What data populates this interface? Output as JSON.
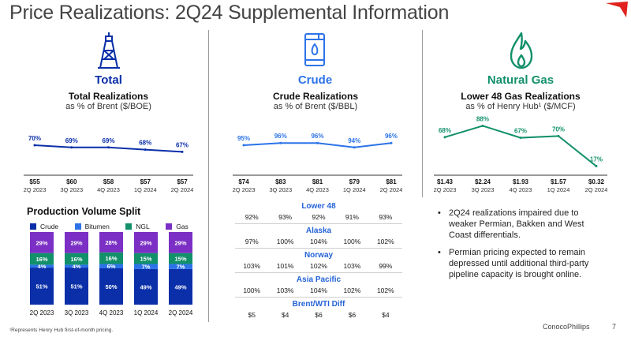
{
  "title": "Price Realizations: 2Q24 Supplemental Information",
  "colors": {
    "total": "#0a2fa8",
    "crude": "#2c73e8",
    "gas": "#12906a",
    "title": "#444444",
    "logo": "#e0211d"
  },
  "total": {
    "heading": "Total",
    "icon": "oil-rig-icon",
    "chart_title": "Total Realizations",
    "chart_unit": "as % of Brent ($/BOE)"
  },
  "crude": {
    "heading": "Crude",
    "icon": "oil-barrel-icon",
    "chart_title": "Crude Realizations",
    "chart_unit": "as % of Brent ($/BBL)"
  },
  "gas": {
    "heading": "Natural Gas",
    "icon": "flame-icon",
    "chart_title": "Lower 48 Gas Realizations",
    "chart_unit": "as % of Henry Hub¹ ($/MCF)"
  },
  "chart_data": [
    {
      "type": "line",
      "title": "Total Realizations",
      "categories": [
        "2Q 2023",
        "3Q 2023",
        "4Q 2023",
        "1Q 2024",
        "2Q 2024"
      ],
      "series": [
        {
          "values": [
            70,
            69,
            69,
            68,
            67
          ]
        }
      ],
      "value_labels": [
        "70%",
        "69%",
        "69%",
        "68%",
        "67%"
      ],
      "price_labels": [
        "$55",
        "$60",
        "$58",
        "$57",
        "$57"
      ]
    },
    {
      "type": "line",
      "title": "Crude Realizations",
      "categories": [
        "2Q 2023",
        "3Q 2023",
        "4Q 2023",
        "1Q 2024",
        "2Q 2024"
      ],
      "series": [
        {
          "values": [
            95,
            96,
            96,
            94,
            96
          ]
        }
      ],
      "value_labels": [
        "95%",
        "96%",
        "96%",
        "94%",
        "96%"
      ],
      "price_labels": [
        "$74",
        "$83",
        "$81",
        "$79",
        "$81"
      ]
    },
    {
      "type": "line",
      "title": "Lower 48 Gas Realizations",
      "categories": [
        "2Q 2023",
        "3Q 2023",
        "4Q 2023",
        "1Q 2024",
        "2Q 2024"
      ],
      "series": [
        {
          "values": [
            68,
            88,
            67,
            70,
            17
          ]
        }
      ],
      "value_labels": [
        "68%",
        "88%",
        "67%",
        "70%",
        "17%"
      ],
      "price_labels": [
        "$1.43",
        "$2.24",
        "$1.93",
        "$1.57",
        "$0.32"
      ]
    },
    {
      "type": "bar",
      "stacked": true,
      "title": "Production Volume Split",
      "categories": [
        "2Q 2023",
        "3Q 2023",
        "4Q 2023",
        "1Q 2024",
        "2Q 2024"
      ],
      "series": [
        {
          "name": "Crude",
          "values": [
            51,
            51,
            50,
            49,
            49
          ],
          "color": "#0a2fa8"
        },
        {
          "name": "Bitumen",
          "values": [
            4,
            4,
            6,
            7,
            7
          ],
          "color": "#2c73e8"
        },
        {
          "name": "NGL",
          "values": [
            16,
            16,
            16,
            15,
            15
          ],
          "color": "#12906a"
        },
        {
          "name": "Gas",
          "values": [
            29,
            29,
            28,
            29,
            29
          ],
          "color": "#7b2fc4"
        }
      ],
      "legend": "top"
    }
  ],
  "production": {
    "title": "Production Volume Split"
  },
  "crude_table": [
    {
      "region": "Lower 48",
      "values": [
        "92%",
        "93%",
        "92%",
        "91%",
        "93%"
      ]
    },
    {
      "region": "Alaska",
      "values": [
        "97%",
        "100%",
        "104%",
        "100%",
        "102%"
      ]
    },
    {
      "region": "Norway",
      "values": [
        "103%",
        "101%",
        "102%",
        "103%",
        "99%"
      ]
    },
    {
      "region": "Asia Pacific",
      "values": [
        "100%",
        "103%",
        "104%",
        "102%",
        "102%"
      ]
    },
    {
      "region": "Brent/WTI Diff",
      "values": [
        "$5",
        "$4",
        "$6",
        "$6",
        "$4"
      ]
    }
  ],
  "bullets": [
    "2Q24 realizations impaired due to weaker Permian, Bakken and West Coast differentials.",
    "Permian pricing expected to remain depressed until additional third-party pipeline capacity is brought online."
  ],
  "footnote": "¹Represents Henry Hub first-of-month pricing.",
  "company": "ConocoPhillips",
  "page_number": "7"
}
